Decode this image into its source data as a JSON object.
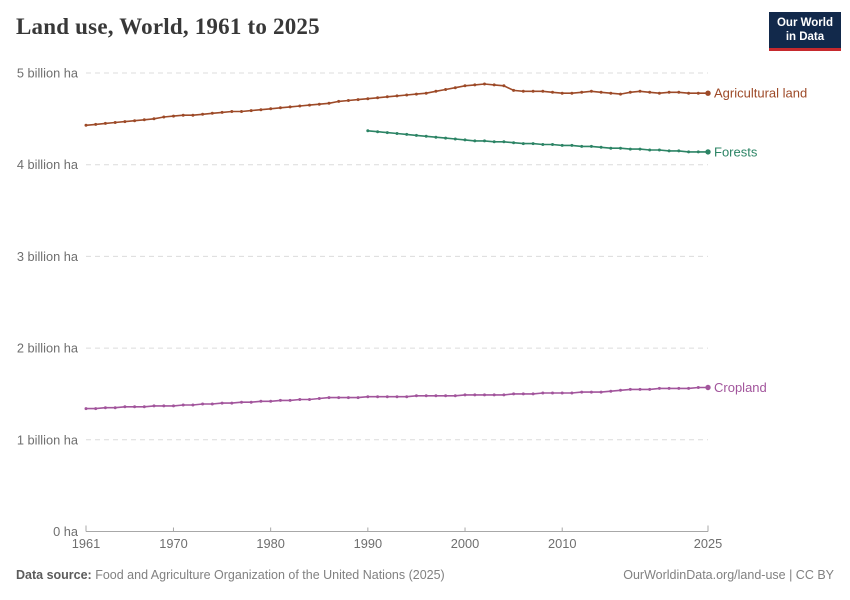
{
  "header": {
    "title": "Land use, World, 1961 to 2025",
    "logo": {
      "line1": "Our World",
      "line2": "in Data",
      "bg_color": "#12294B",
      "accent_color": "#C6292D"
    }
  },
  "footer": {
    "source_label": "Data source:",
    "source_text": " Food and Agriculture Organization of the United Nations (2025)",
    "credit": "OurWorldinData.org/land-use | CC BY"
  },
  "chart_data": {
    "type": "line",
    "title": "Land use, World, 1961 to 2025",
    "unit": "billion ha",
    "xlim": [
      1961,
      2025
    ],
    "ylim": [
      0,
      5
    ],
    "grid": "horizontal-dashed",
    "grid_color": "#DCDCDC",
    "axis_color": "#A8A8A8",
    "tick_label_color": "#6F6F6F",
    "legend_position": "right-of-line-ends",
    "x_ticks": [
      1961,
      1970,
      1980,
      1990,
      2000,
      2010,
      2025
    ],
    "y_ticks": [
      {
        "value": 5,
        "label": "5 billion ha"
      },
      {
        "value": 4,
        "label": "4 billion ha"
      },
      {
        "value": 3,
        "label": "3 billion ha"
      },
      {
        "value": 2,
        "label": "2 billion ha"
      },
      {
        "value": 1,
        "label": "1 billion ha"
      },
      {
        "value": 0,
        "label": "0 ha"
      }
    ],
    "series": [
      {
        "name": "Agricultural land",
        "color": "#9D4A28",
        "start_year": 1961,
        "values": [
          4.43,
          4.44,
          4.45,
          4.46,
          4.47,
          4.48,
          4.49,
          4.5,
          4.52,
          4.53,
          4.54,
          4.54,
          4.55,
          4.56,
          4.57,
          4.58,
          4.58,
          4.59,
          4.6,
          4.61,
          4.62,
          4.63,
          4.64,
          4.65,
          4.66,
          4.67,
          4.69,
          4.7,
          4.71,
          4.72,
          4.73,
          4.74,
          4.75,
          4.76,
          4.77,
          4.78,
          4.8,
          4.82,
          4.84,
          4.86,
          4.87,
          4.88,
          4.87,
          4.86,
          4.81,
          4.8,
          4.8,
          4.8,
          4.79,
          4.78,
          4.78,
          4.79,
          4.8,
          4.79,
          4.78,
          4.77,
          4.79,
          4.8,
          4.79,
          4.78,
          4.79,
          4.79,
          4.78,
          4.78,
          4.78
        ]
      },
      {
        "name": "Forests",
        "color": "#2C8465",
        "start_year": 1990,
        "values": [
          4.37,
          4.36,
          4.35,
          4.34,
          4.33,
          4.32,
          4.31,
          4.3,
          4.29,
          4.28,
          4.27,
          4.26,
          4.26,
          4.25,
          4.25,
          4.24,
          4.23,
          4.23,
          4.22,
          4.22,
          4.21,
          4.21,
          4.2,
          4.2,
          4.19,
          4.18,
          4.18,
          4.17,
          4.17,
          4.16,
          4.16,
          4.15,
          4.15,
          4.14,
          4.14,
          4.14
        ]
      },
      {
        "name": "Cropland",
        "color": "#A2559C",
        "start_year": 1961,
        "values": [
          1.34,
          1.34,
          1.35,
          1.35,
          1.36,
          1.36,
          1.36,
          1.37,
          1.37,
          1.37,
          1.38,
          1.38,
          1.39,
          1.39,
          1.4,
          1.4,
          1.41,
          1.41,
          1.42,
          1.42,
          1.43,
          1.43,
          1.44,
          1.44,
          1.45,
          1.46,
          1.46,
          1.46,
          1.46,
          1.47,
          1.47,
          1.47,
          1.47,
          1.47,
          1.48,
          1.48,
          1.48,
          1.48,
          1.48,
          1.49,
          1.49,
          1.49,
          1.49,
          1.49,
          1.5,
          1.5,
          1.5,
          1.51,
          1.51,
          1.51,
          1.51,
          1.52,
          1.52,
          1.52,
          1.53,
          1.54,
          1.55,
          1.55,
          1.55,
          1.56,
          1.56,
          1.56,
          1.56,
          1.57,
          1.57
        ]
      }
    ]
  }
}
